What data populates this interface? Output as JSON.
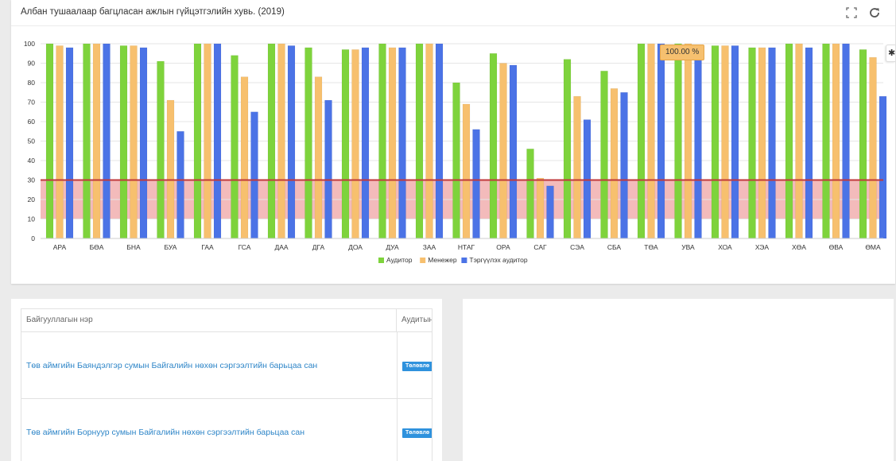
{
  "chart_panel": {
    "title": "Албан тушаалаар багцласан ажлын гүйцэтгэлийн хувь. (2019)",
    "icons": {
      "expand": "expand-icon",
      "refresh": "refresh-icon",
      "settings_tab": "gear-icon"
    },
    "tooltip": "100.00 %"
  },
  "chart_data": {
    "type": "bar",
    "title": "Албан тушаалаар багцласан ажлын гүйцэтгэлийн хувь. (2019)",
    "categories": [
      "АРА",
      "БӨА",
      "БНА",
      "БУА",
      "ГАА",
      "ГСА",
      "ДАА",
      "ДГА",
      "ДОА",
      "ДУА",
      "ЗАА",
      "НТАГ",
      "ОРА",
      "САГ",
      "СЭА",
      "СБА",
      "ТӨА",
      "УВА",
      "ХОА",
      "ХЭА",
      "ХӨА",
      "ӨВА",
      "ӨМА"
    ],
    "series": [
      {
        "name": "Аудитор",
        "color": "#7ed33c",
        "values": [
          100,
          100,
          99,
          91,
          100,
          94,
          100,
          98,
          97,
          100,
          100,
          80,
          95,
          46,
          92,
          86,
          100,
          100,
          99,
          98,
          100,
          100,
          97
        ]
      },
      {
        "name": "Менежер",
        "color": "#f7c06e",
        "values": [
          99,
          100,
          99,
          71,
          100,
          83,
          100,
          83,
          97,
          98,
          100,
          69,
          90,
          31,
          73,
          77,
          100,
          100,
          99,
          98,
          100,
          100,
          93
        ]
      },
      {
        "name": "Тэргүүлэх аудитор",
        "color": "#4b73e6",
        "values": [
          98,
          100,
          98,
          55,
          100,
          65,
          99,
          71,
          98,
          98,
          100,
          56,
          89,
          27,
          61,
          75,
          100,
          94,
          99,
          98,
          98,
          100,
          73
        ]
      }
    ],
    "yticks": [
      0,
      10,
      20,
      30,
      40,
      50,
      60,
      70,
      80,
      90,
      100
    ],
    "ylim": [
      0,
      100
    ],
    "threshold_line": 30,
    "threshold_band": [
      10,
      30
    ],
    "legend": [
      "Аудитор",
      "Менежер",
      "Тэргүүлэх аудитор"
    ],
    "legend_position": "bottom-center",
    "grid": true
  },
  "table": {
    "columns": [
      "Байгууллагын нэр",
      "Аудитын"
    ],
    "rows": [
      {
        "name": "Төв аймгийн Баяндэлгэр сумын Байгалийн нөхөн сэргээлтийн барьцаа сан",
        "badge": "Төлөвлө"
      },
      {
        "name": "Төв аймгийн Борнуур сумын Байгалийн нөхөн сэргээлтийн барьцаа сан",
        "badge": "Төлөвлө"
      }
    ]
  }
}
